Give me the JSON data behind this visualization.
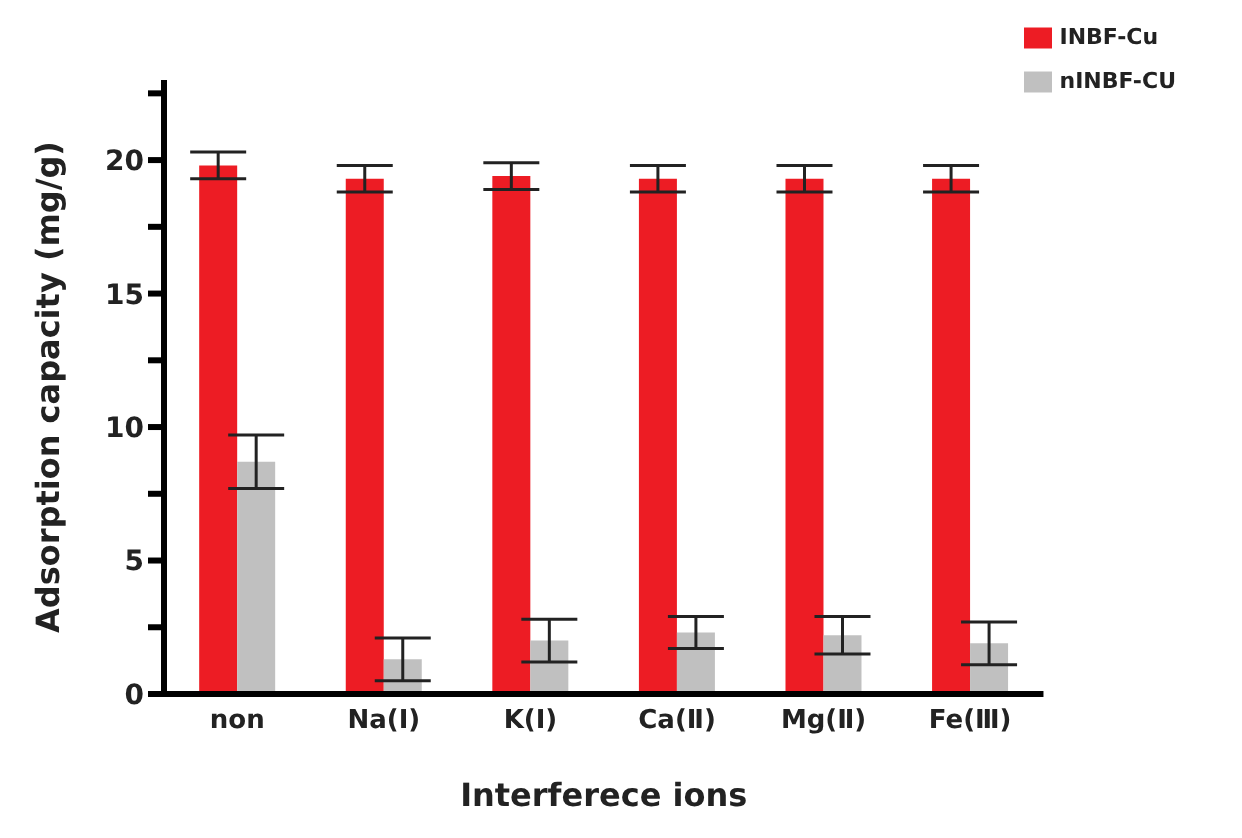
{
  "chart_data": {
    "type": "bar",
    "xlabel": "Interferece ions",
    "ylabel": "Adsorption capacity (mg/g)",
    "categories": [
      "non",
      "Na(Ⅰ)",
      "K(Ⅰ)",
      "Ca(Ⅱ)",
      "Mg(Ⅱ)",
      "Fe(Ⅲ)"
    ],
    "series": [
      {
        "name": "INBF-Cu",
        "color": "#ed1c24",
        "values": [
          19.8,
          19.3,
          19.4,
          19.3,
          19.3,
          19.3
        ],
        "errors": [
          0.5,
          0.5,
          0.5,
          0.5,
          0.5,
          0.5
        ]
      },
      {
        "name": "nINBF-CU",
        "color": "#c0c0c0",
        "values": [
          8.7,
          1.3,
          2.0,
          2.3,
          2.2,
          1.9
        ],
        "errors": [
          1.0,
          0.8,
          0.8,
          0.6,
          0.7,
          0.8
        ]
      }
    ],
    "ylim": [
      0,
      23
    ],
    "yticks": [
      0,
      {
        "value": 2.5,
        "label": null
      },
      5,
      {
        "value": 7.5,
        "label": null
      },
      10,
      {
        "value": 12.5,
        "label": null
      },
      15,
      {
        "value": 17.5,
        "label": null
      },
      20,
      {
        "value": 22.5,
        "label": null
      }
    ],
    "grid": false,
    "legend": "top right"
  }
}
